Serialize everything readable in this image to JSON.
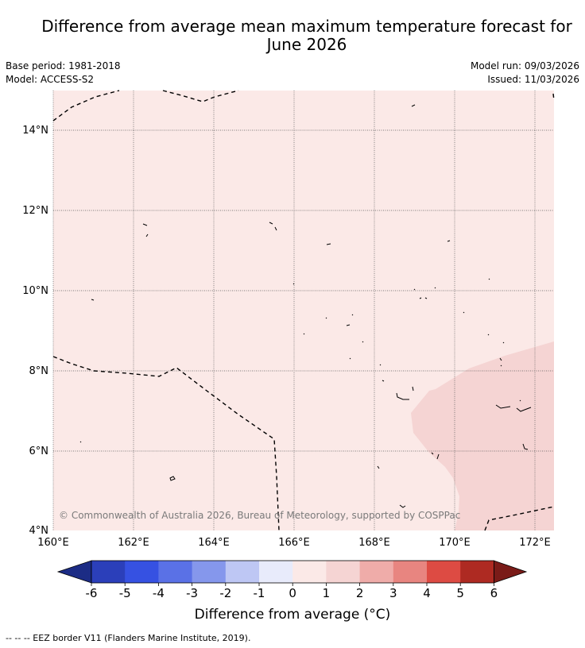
{
  "title": "Difference from average mean maximum temperature forecast for\nJune 2026",
  "meta": {
    "base_period": "Base period: 1981-2018",
    "model": "Model: ACCESS-S2",
    "model_run": "Model run: 09/03/2026",
    "issued": "Issued: 11/03/2026"
  },
  "map": {
    "lon_labels": [
      "160°E",
      "162°E",
      "164°E",
      "166°E",
      "168°E",
      "170°E",
      "172°E"
    ],
    "lat_labels": [
      "14°N",
      "12°N",
      "10°N",
      "8°N",
      "6°N",
      "4°N"
    ],
    "copyright": "© Commonwealth of Australia 2026, Bureau of Meteorology, supported by COSPPac",
    "background_color": "#fbe9e7",
    "anomaly_region_color": "#f5d4d3"
  },
  "colorbar": {
    "title": "Difference from average (°C)",
    "tick_labels": [
      "-6",
      "-5",
      "-4",
      "-3",
      "-2",
      "-1",
      "0",
      "1",
      "2",
      "3",
      "4",
      "5",
      "6"
    ],
    "colors": [
      "#1c2c85",
      "#2b3fba",
      "#3651e2",
      "#5a71e6",
      "#8597ec",
      "#bec7f4",
      "#e8ebfb",
      "#fbe9e7",
      "#f5d4d3",
      "#efaca9",
      "#e88580",
      "#dd4b43",
      "#ae2a22",
      "#7a1b18"
    ]
  },
  "legend_note": "-- -- -- EEZ border V11 (Flanders Marine Institute, 2019)."
}
